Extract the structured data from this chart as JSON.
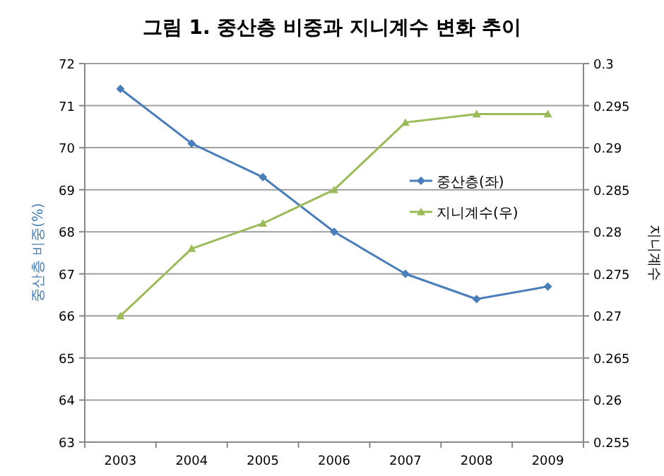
{
  "chart_data": {
    "type": "line",
    "title": "그림 1. 중산층 비중과 지니계수 변화 추이",
    "ylabel": "중산층 비중(%)",
    "y2label": "지니계수",
    "categories": [
      "2003",
      "2004",
      "2005",
      "2006",
      "2007",
      "2008",
      "2009"
    ],
    "series": [
      {
        "name": "중산층(좌)",
        "color": "#4a7ebb",
        "marker": "diamond",
        "values": [
          71.4,
          70.1,
          69.3,
          68.0,
          67.0,
          66.4,
          66.7
        ]
      },
      {
        "name": "지니계수(우)",
        "color": "#9bbb59",
        "marker": "triangle",
        "axis": "y2",
        "values": [
          0.27,
          0.278,
          0.281,
          0.285,
          0.293,
          0.294,
          0.294
        ]
      }
    ],
    "ylim": [
      63,
      72
    ],
    "yticks": [
      63,
      64,
      65,
      66,
      67,
      68,
      69,
      70,
      71,
      72
    ],
    "y2lim": [
      0.255,
      0.3
    ],
    "y2ticks": [
      0.255,
      0.26,
      0.265,
      0.27,
      0.275,
      0.28,
      0.285,
      0.29,
      0.295,
      0.3
    ],
    "grid": "y",
    "legend": "right"
  }
}
